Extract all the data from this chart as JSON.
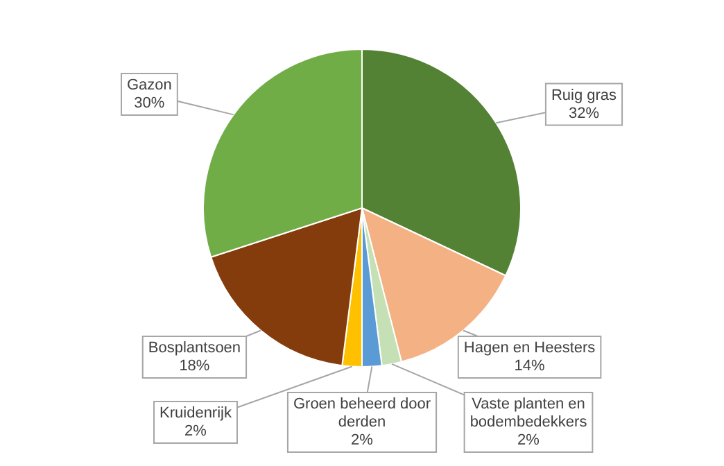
{
  "chart_data": {
    "type": "pie",
    "categories": [
      "Ruig gras",
      "Hagen en Heesters",
      "Vaste planten en bodembedekkers",
      "Groen beheerd door derden",
      "Kruidenrijk",
      "Bosplantsoen",
      "Gazon"
    ],
    "values": [
      32,
      14,
      2,
      2,
      2,
      18,
      30
    ],
    "value_labels": [
      "32%",
      "14%",
      "2%",
      "2%",
      "2%",
      "18%",
      "30%"
    ],
    "colors": [
      "#548235",
      "#f4b183",
      "#c5e0b4",
      "#5b9bd5",
      "#ffc000",
      "#843c0c",
      "#70ad47"
    ],
    "legend": false
  }
}
